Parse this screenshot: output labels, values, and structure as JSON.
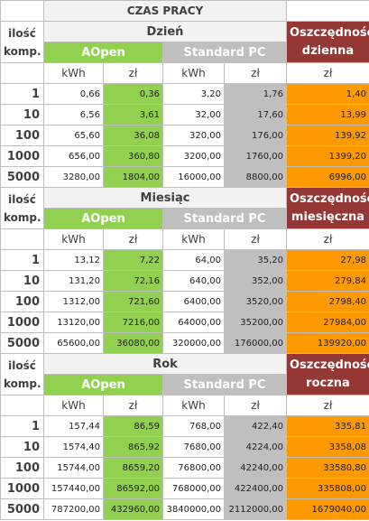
{
  "title": "CZAS PRACY",
  "qty_label": "ilość komp.",
  "unit_kwh": "kWh",
  "unit_zl": "zł",
  "aopen_label": "AOpen",
  "standard_label": "Standard PC",
  "colors": {
    "aopen": "#92d050",
    "standard": "#bfbfbf",
    "savings_value": "#ff9900",
    "savings_header": "#953735"
  },
  "sections": [
    {
      "label": "Dzień",
      "savings_label": "Oszczędność dzienna",
      "rows": [
        {
          "qty": "1",
          "aopen_kwh": "0,66",
          "aopen_zl": "0,36",
          "std_kwh": "3,20",
          "std_zl": "1,76",
          "savings": "1,40"
        },
        {
          "qty": "10",
          "aopen_kwh": "6,56",
          "aopen_zl": "3,61",
          "std_kwh": "32,00",
          "std_zl": "17,60",
          "savings": "13,99"
        },
        {
          "qty": "100",
          "aopen_kwh": "65,60",
          "aopen_zl": "36,08",
          "std_kwh": "320,00",
          "std_zl": "176,00",
          "savings": "139,92"
        },
        {
          "qty": "1000",
          "aopen_kwh": "656,00",
          "aopen_zl": "360,80",
          "std_kwh": "3200,00",
          "std_zl": "1760,00",
          "savings": "1399,20"
        },
        {
          "qty": "5000",
          "aopen_kwh": "3280,00",
          "aopen_zl": "1804,00",
          "std_kwh": "16000,00",
          "std_zl": "8800,00",
          "savings": "6996,00"
        }
      ]
    },
    {
      "label": "Miesiąc",
      "savings_label": "Oszczędność miesięczna",
      "rows": [
        {
          "qty": "1",
          "aopen_kwh": "13,12",
          "aopen_zl": "7,22",
          "std_kwh": "64,00",
          "std_zl": "35,20",
          "savings": "27,98"
        },
        {
          "qty": "10",
          "aopen_kwh": "131,20",
          "aopen_zl": "72,16",
          "std_kwh": "640,00",
          "std_zl": "352,00",
          "savings": "279,84"
        },
        {
          "qty": "100",
          "aopen_kwh": "1312,00",
          "aopen_zl": "721,60",
          "std_kwh": "6400,00",
          "std_zl": "3520,00",
          "savings": "2798,40"
        },
        {
          "qty": "1000",
          "aopen_kwh": "13120,00",
          "aopen_zl": "7216,00",
          "std_kwh": "64000,00",
          "std_zl": "35200,00",
          "savings": "27984,00"
        },
        {
          "qty": "5000",
          "aopen_kwh": "65600,00",
          "aopen_zl": "36080,00",
          "std_kwh": "320000,00",
          "std_zl": "176000,00",
          "savings": "139920,00"
        }
      ]
    },
    {
      "label": "Rok",
      "savings_label": "Oszczędność roczna",
      "rows": [
        {
          "qty": "1",
          "aopen_kwh": "157,44",
          "aopen_zl": "86,59",
          "std_kwh": "768,00",
          "std_zl": "422,40",
          "savings": "335,81"
        },
        {
          "qty": "10",
          "aopen_kwh": "1574,40",
          "aopen_zl": "865,92",
          "std_kwh": "7680,00",
          "std_zl": "4224,00",
          "savings": "3358,08"
        },
        {
          "qty": "100",
          "aopen_kwh": "15744,00",
          "aopen_zl": "8659,20",
          "std_kwh": "76800,00",
          "std_zl": "42240,00",
          "savings": "33580,80"
        },
        {
          "qty": "1000",
          "aopen_kwh": "157440,00",
          "aopen_zl": "86592,00",
          "std_kwh": "768000,00",
          "std_zl": "422400,00",
          "savings": "335808,00"
        },
        {
          "qty": "5000",
          "aopen_kwh": "787200,00",
          "aopen_zl": "432960,00",
          "std_kwh": "3840000,00",
          "std_zl": "2112000,00",
          "savings": "1679040,00"
        }
      ]
    }
  ]
}
